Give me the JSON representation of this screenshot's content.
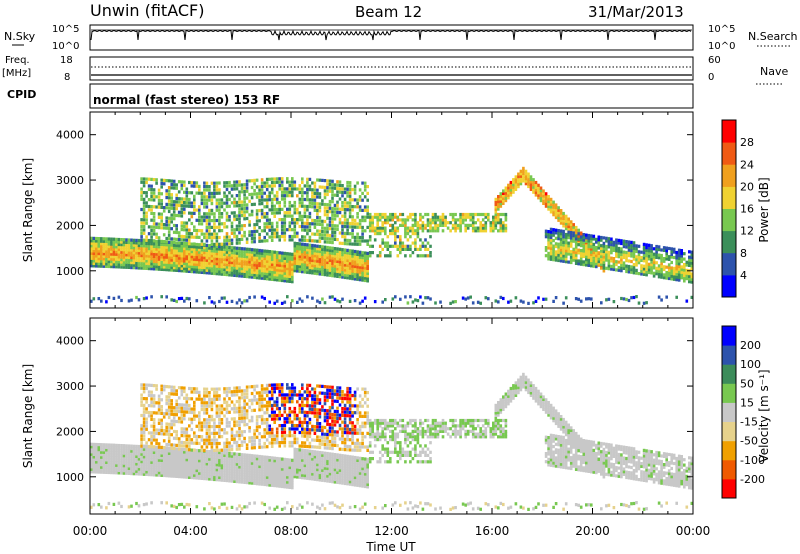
{
  "header": {
    "title": "Unwin (fitACF)",
    "beam": "Beam 12",
    "date": "31/Mar/2013"
  },
  "top_panels": {
    "nsky_label": "N.Sky",
    "nsearch_label": "N.Search",
    "nsky_ticks": [
      "10^5",
      "10^0"
    ],
    "nsky_right_ticks": [
      "10^5",
      "10^0"
    ],
    "freq_label": "Freq.",
    "freq_unit": "[MHz]",
    "freq_ticks": [
      "18",
      "8"
    ],
    "nave_label": "Nave",
    "nave_ticks": [
      "60",
      "0"
    ],
    "cpid_label": "CPID",
    "cpid_text": "normal (fast stereo) 153 RF"
  },
  "chart_data": [
    {
      "type": "heatmap",
      "quantity": "power",
      "ylabel": "Slant Range [km]",
      "ylim": [
        180,
        4500
      ],
      "yticks": [
        "1000",
        "2000",
        "3000",
        "4000"
      ],
      "x_ticks": [
        "00:00",
        "04:00",
        "08:00",
        "12:00",
        "16:00",
        "20:00",
        "00:00"
      ],
      "colorbar": {
        "label": "Power [dB]",
        "ticks": [
          "28",
          "24",
          "20",
          "16",
          "12",
          "8",
          "4"
        ],
        "colors": [
          "#0000ff",
          "#2d53ac",
          "#3b8f5a",
          "#78c850",
          "#f0d232",
          "#f0a01e",
          "#f05a14",
          "#ff0000"
        ]
      }
    },
    {
      "type": "heatmap",
      "quantity": "velocity",
      "ylabel": "Slant Range [km]",
      "ylim": [
        180,
        4500
      ],
      "yticks": [
        "1000",
        "2000",
        "3000",
        "4000"
      ],
      "x_ticks": [
        "00:00",
        "04:00",
        "08:00",
        "12:00",
        "16:00",
        "20:00",
        "00:00"
      ],
      "xlabel": "Time UT",
      "colorbar": {
        "label": "Velocity [m s⁻¹]",
        "ticks": [
          "200",
          "100",
          "50",
          "15",
          "-15",
          "-50",
          "-100",
          "-200"
        ],
        "colors": [
          "#ff0000",
          "#f05a00",
          "#f0a000",
          "#e6d28c",
          "#c8c8c8",
          "#78c850",
          "#3c8c5a",
          "#2d53ac",
          "#0000ff"
        ]
      }
    }
  ]
}
